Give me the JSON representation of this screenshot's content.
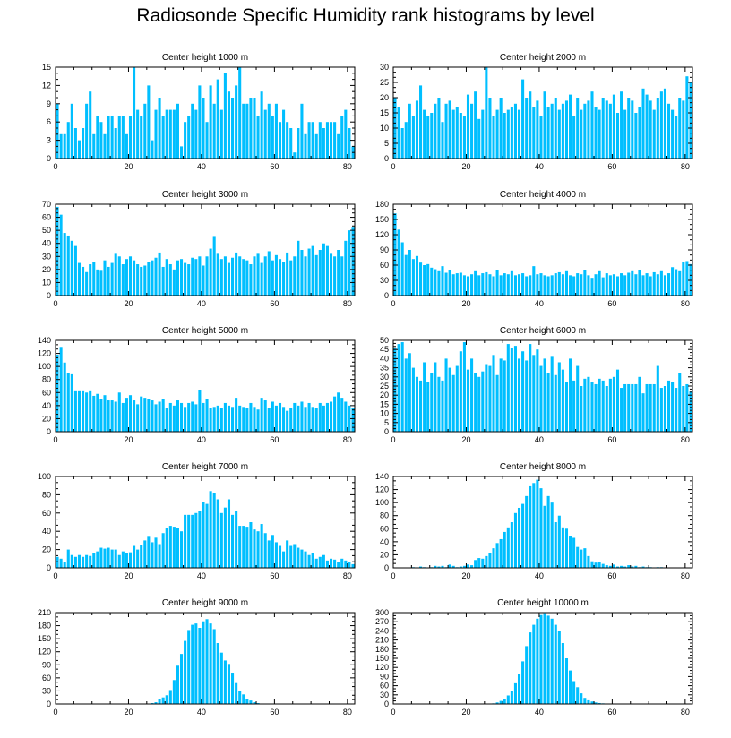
{
  "title": "Radiosonde Specific Humidity rank histograms by level",
  "bar_color": "#00BFFF",
  "chart_data": [
    {
      "type": "bar",
      "title": "Center height 1000 m",
      "xlim": [
        0,
        82
      ],
      "ylim": [
        0,
        15
      ],
      "xticks": [
        0,
        20,
        40,
        60,
        80
      ],
      "yticks": [
        0,
        3,
        6,
        9,
        12,
        15
      ],
      "values": [
        9,
        4,
        4,
        6,
        9,
        5,
        3,
        5,
        9,
        11,
        4,
        7,
        6,
        4,
        7,
        7,
        5,
        7,
        7,
        4,
        7,
        15,
        8,
        7,
        9,
        12,
        3,
        8,
        10,
        7,
        8,
        8,
        8,
        9,
        2,
        6,
        7,
        9,
        8,
        12,
        10,
        6,
        12,
        9,
        13,
        8,
        14,
        11,
        10,
        12,
        15,
        9,
        9,
        10,
        10,
        7,
        11,
        8,
        9,
        7,
        9,
        6,
        8,
        6,
        5,
        1,
        5,
        9,
        4,
        6,
        6,
        4,
        6,
        5,
        6,
        6,
        6,
        4,
        7,
        8,
        5,
        2
      ]
    },
    {
      "type": "bar",
      "title": "Center height 2000 m",
      "xlim": [
        0,
        82
      ],
      "ylim": [
        0,
        30
      ],
      "xticks": [
        0,
        20,
        40,
        60,
        80
      ],
      "yticks": [
        0,
        5,
        10,
        15,
        20,
        25,
        30
      ],
      "values": [
        20,
        17,
        10,
        12,
        18,
        14,
        19,
        24,
        16,
        14,
        15,
        18,
        20,
        12,
        18,
        19,
        16,
        17,
        15,
        14,
        21,
        18,
        22,
        13,
        16,
        30,
        20,
        14,
        16,
        20,
        15,
        16,
        17,
        18,
        16,
        26,
        20,
        22,
        17,
        19,
        14,
        22,
        17,
        18,
        20,
        16,
        18,
        19,
        21,
        14,
        20,
        16,
        18,
        19,
        22,
        17,
        16,
        20,
        19,
        18,
        21,
        15,
        22,
        16,
        20,
        19,
        15,
        17,
        23,
        21,
        19,
        16,
        20,
        22,
        23,
        18,
        16,
        14,
        20,
        19,
        27,
        25
      ]
    },
    {
      "type": "bar",
      "title": "Center height 3000 m",
      "xlim": [
        0,
        82
      ],
      "ylim": [
        0,
        70
      ],
      "xticks": [
        0,
        20,
        40,
        60,
        80
      ],
      "yticks": [
        0,
        10,
        20,
        30,
        40,
        50,
        60,
        70
      ],
      "values": [
        68,
        62,
        48,
        46,
        42,
        38,
        25,
        22,
        18,
        24,
        26,
        20,
        19,
        27,
        22,
        25,
        32,
        30,
        24,
        28,
        30,
        27,
        24,
        22,
        23,
        26,
        27,
        29,
        33,
        22,
        28,
        24,
        20,
        27,
        28,
        25,
        24,
        29,
        28,
        30,
        23,
        30,
        36,
        45,
        32,
        28,
        30,
        25,
        29,
        33,
        30,
        28,
        27,
        24,
        30,
        32,
        25,
        30,
        34,
        27,
        31,
        28,
        26,
        33,
        27,
        30,
        42,
        35,
        30,
        36,
        38,
        31,
        35,
        40,
        38,
        32,
        30,
        35,
        30,
        42,
        50,
        52
      ]
    },
    {
      "type": "bar",
      "title": "Center height 4000 m",
      "xlim": [
        0,
        82
      ],
      "ylim": [
        0,
        180
      ],
      "xticks": [
        0,
        20,
        40,
        60,
        80
      ],
      "yticks": [
        0,
        30,
        60,
        90,
        120,
        150,
        180
      ],
      "values": [
        162,
        130,
        105,
        80,
        90,
        72,
        78,
        65,
        60,
        62,
        55,
        52,
        48,
        58,
        45,
        50,
        42,
        44,
        45,
        40,
        38,
        42,
        48,
        40,
        44,
        46,
        42,
        38,
        50,
        40,
        44,
        42,
        48,
        40,
        42,
        44,
        38,
        40,
        58,
        42,
        44,
        40,
        38,
        40,
        44,
        46,
        42,
        48,
        40,
        38,
        44,
        42,
        50,
        40,
        35,
        42,
        48,
        36,
        44,
        40,
        42,
        38,
        44,
        40,
        45,
        48,
        42,
        50,
        40,
        44,
        38,
        46,
        42,
        48,
        40,
        44,
        56,
        52,
        48,
        66,
        68,
        62
      ]
    },
    {
      "type": "bar",
      "title": "Center height 5000 m",
      "xlim": [
        0,
        82
      ],
      "ylim": [
        0,
        140
      ],
      "xticks": [
        0,
        20,
        40,
        60,
        80
      ],
      "yticks": [
        0,
        20,
        40,
        60,
        80,
        100,
        120,
        140
      ],
      "values": [
        118,
        130,
        106,
        90,
        88,
        62,
        62,
        62,
        60,
        62,
        55,
        58,
        50,
        56,
        48,
        48,
        46,
        60,
        44,
        52,
        56,
        48,
        42,
        54,
        52,
        50,
        48,
        42,
        46,
        50,
        36,
        44,
        40,
        48,
        44,
        38,
        44,
        46,
        42,
        64,
        44,
        50,
        36,
        38,
        40,
        36,
        44,
        40,
        38,
        52,
        40,
        38,
        36,
        44,
        38,
        34,
        52,
        48,
        36,
        46,
        40,
        44,
        38,
        32,
        36,
        44,
        40,
        46,
        38,
        44,
        38,
        36,
        44,
        40,
        44,
        46,
        54,
        60,
        52,
        46,
        40,
        36
      ]
    },
    {
      "type": "bar",
      "title": "Center height 6000 m",
      "xlim": [
        0,
        82
      ],
      "ylim": [
        0,
        50
      ],
      "xticks": [
        0,
        20,
        40,
        60,
        80
      ],
      "yticks": [
        0,
        5,
        10,
        15,
        20,
        25,
        30,
        35,
        40,
        45,
        50
      ],
      "values": [
        46,
        48,
        49,
        40,
        43,
        35,
        30,
        28,
        38,
        27,
        32,
        38,
        30,
        28,
        40,
        35,
        31,
        36,
        44,
        49,
        34,
        40,
        32,
        30,
        33,
        37,
        36,
        42,
        31,
        40,
        39,
        48,
        46,
        47,
        40,
        44,
        39,
        48,
        42,
        45,
        36,
        40,
        32,
        41,
        31,
        38,
        34,
        27,
        40,
        28,
        36,
        25,
        29,
        30,
        27,
        26,
        29,
        28,
        25,
        29,
        30,
        34,
        24,
        26,
        26,
        26,
        26,
        30,
        21,
        26,
        26,
        26,
        36,
        24,
        25,
        28,
        27,
        24,
        32,
        25,
        26,
        22
      ]
    },
    {
      "type": "bar",
      "title": "Center height 7000 m",
      "xlim": [
        0,
        82
      ],
      "ylim": [
        0,
        100
      ],
      "xticks": [
        0,
        20,
        40,
        60,
        80
      ],
      "yticks": [
        0,
        20,
        40,
        60,
        80,
        100
      ],
      "values": [
        12,
        10,
        6,
        20,
        14,
        12,
        14,
        12,
        14,
        13,
        16,
        18,
        22,
        21,
        22,
        20,
        20,
        14,
        18,
        16,
        17,
        24,
        20,
        25,
        30,
        34,
        28,
        33,
        26,
        38,
        44,
        46,
        45,
        44,
        40,
        58,
        58,
        58,
        60,
        62,
        72,
        70,
        84,
        82,
        75,
        60,
        66,
        75,
        58,
        62,
        46,
        46,
        45,
        50,
        42,
        40,
        48,
        38,
        30,
        36,
        28,
        24,
        18,
        30,
        24,
        26,
        22,
        20,
        18,
        14,
        16,
        10,
        12,
        14,
        8,
        10,
        9,
        6,
        10,
        8,
        6,
        4
      ]
    },
    {
      "type": "bar",
      "title": "Center height 8000 m",
      "xlim": [
        0,
        82
      ],
      "ylim": [
        0,
        140
      ],
      "xticks": [
        0,
        20,
        40,
        60,
        80
      ],
      "yticks": [
        0,
        20,
        40,
        60,
        80,
        100,
        120,
        140
      ],
      "values": [
        0,
        0,
        0,
        0,
        0,
        1,
        0,
        2,
        1,
        0,
        1,
        3,
        2,
        3,
        1,
        5,
        3,
        1,
        2,
        3,
        5,
        4,
        12,
        15,
        14,
        18,
        22,
        30,
        38,
        44,
        55,
        62,
        70,
        84,
        92,
        98,
        110,
        125,
        130,
        135,
        122,
        95,
        110,
        100,
        70,
        80,
        62,
        60,
        48,
        46,
        32,
        28,
        30,
        18,
        10,
        8,
        9,
        6,
        4,
        3,
        5,
        2,
        3,
        2,
        4,
        2,
        3,
        1,
        2,
        1,
        1,
        0,
        1,
        1,
        0,
        0,
        0,
        0,
        0,
        0,
        0,
        0
      ]
    },
    {
      "type": "bar",
      "title": "Center height 9000 m",
      "xlim": [
        0,
        82
      ],
      "ylim": [
        0,
        210
      ],
      "xticks": [
        0,
        20,
        40,
        60,
        80
      ],
      "yticks": [
        0,
        30,
        60,
        90,
        120,
        150,
        180,
        210
      ],
      "values": [
        0,
        0,
        0,
        0,
        0,
        0,
        0,
        0,
        0,
        0,
        0,
        0,
        0,
        0,
        0,
        0,
        0,
        0,
        0,
        0,
        0,
        0,
        0,
        0,
        0,
        1,
        2,
        4,
        12,
        15,
        20,
        32,
        55,
        88,
        115,
        145,
        170,
        182,
        185,
        175,
        190,
        195,
        185,
        172,
        140,
        118,
        100,
        92,
        72,
        48,
        30,
        22,
        12,
        8,
        4,
        2,
        1,
        1,
        0,
        0,
        0,
        0,
        0,
        0,
        0,
        0,
        0,
        0,
        0,
        0,
        0,
        0,
        0,
        0,
        0,
        0,
        0,
        0,
        0,
        0,
        0,
        0
      ]
    },
    {
      "type": "bar",
      "title": "Center height 10000 m",
      "xlim": [
        0,
        82
      ],
      "ylim": [
        0,
        300
      ],
      "xticks": [
        0,
        20,
        40,
        60,
        80
      ],
      "yticks": [
        0,
        30,
        60,
        90,
        120,
        150,
        180,
        210,
        240,
        270,
        300
      ],
      "values": [
        0,
        0,
        0,
        0,
        0,
        0,
        0,
        0,
        0,
        0,
        0,
        0,
        0,
        0,
        0,
        0,
        0,
        0,
        0,
        0,
        0,
        0,
        0,
        0,
        0,
        0,
        1,
        2,
        5,
        10,
        15,
        28,
        44,
        68,
        100,
        140,
        190,
        235,
        260,
        280,
        292,
        298,
        290,
        280,
        260,
        240,
        200,
        150,
        110,
        75,
        55,
        35,
        20,
        12,
        8,
        5,
        3,
        2,
        1,
        1,
        0,
        0,
        0,
        0,
        0,
        0,
        0,
        0,
        0,
        0,
        0,
        0,
        0,
        0,
        0,
        0,
        0,
        0,
        0,
        0,
        0,
        0
      ]
    }
  ]
}
